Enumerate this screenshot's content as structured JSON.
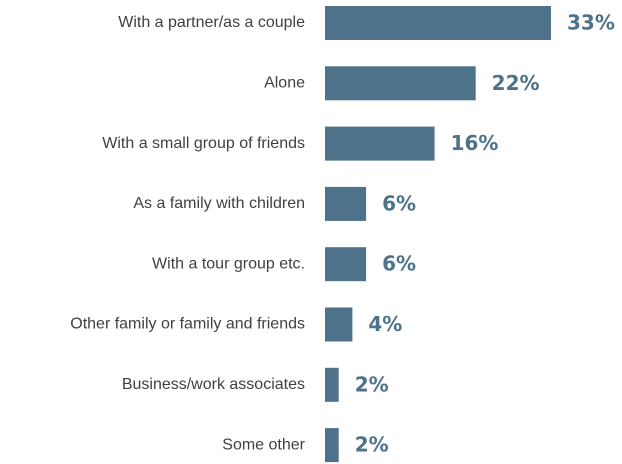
{
  "chart_data": {
    "type": "bar",
    "orientation": "horizontal",
    "categories": [
      "With a partner/as a couple",
      "Alone",
      "With a small group of friends",
      "As a family with children",
      "With a tour group etc.",
      "Other family or family and friends",
      "Business/work associates",
      "Some other"
    ],
    "values": [
      33,
      22,
      16,
      6,
      6,
      4,
      2,
      2
    ],
    "value_labels": [
      "33%",
      "22%",
      "16%",
      "6%",
      "6%",
      "4%",
      "2%",
      "2%"
    ],
    "unit": "%",
    "xlim": [
      0,
      33
    ],
    "grid": false,
    "legend": "none",
    "bar_color": "#4e7289",
    "label_color": "#4e7289"
  }
}
